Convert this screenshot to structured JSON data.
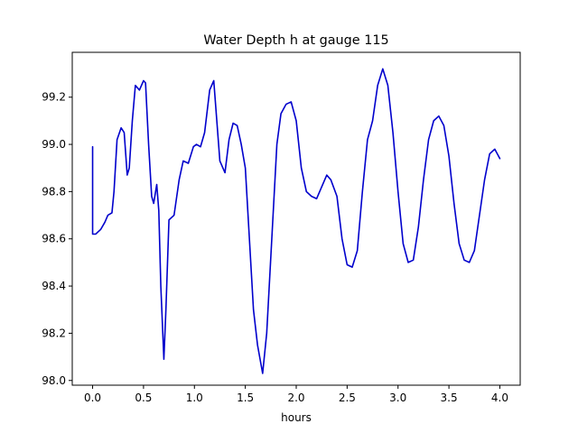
{
  "chart_data": {
    "type": "line",
    "title": "Water Depth h at gauge 115",
    "xlabel": "hours",
    "ylabel": "",
    "xlim": [
      -0.2,
      4.2
    ],
    "ylim": [
      97.98,
      99.39
    ],
    "xticks": [
      0.0,
      0.5,
      1.0,
      1.5,
      2.0,
      2.5,
      3.0,
      3.5,
      4.0
    ],
    "xtick_labels": [
      "0.0",
      "0.5",
      "1.0",
      "1.5",
      "2.0",
      "2.5",
      "3.0",
      "3.5",
      "4.0"
    ],
    "yticks": [
      98.0,
      98.2,
      98.4,
      98.6,
      98.8,
      99.0,
      99.2
    ],
    "ytick_labels": [
      "98.0",
      "98.2",
      "98.4",
      "98.6",
      "98.8",
      "99.0",
      "99.2"
    ],
    "grid": false,
    "series": [
      {
        "color": "#0000cc",
        "points": [
          [
            0.0,
            98.99
          ],
          [
            0.0,
            98.62
          ],
          [
            0.03,
            98.62
          ],
          [
            0.08,
            98.64
          ],
          [
            0.12,
            98.67
          ],
          [
            0.15,
            98.7
          ],
          [
            0.19,
            98.71
          ],
          [
            0.21,
            98.8
          ],
          [
            0.24,
            99.02
          ],
          [
            0.28,
            99.07
          ],
          [
            0.31,
            99.05
          ],
          [
            0.34,
            98.87
          ],
          [
            0.36,
            98.9
          ],
          [
            0.39,
            99.1
          ],
          [
            0.42,
            99.25
          ],
          [
            0.46,
            99.23
          ],
          [
            0.5,
            99.27
          ],
          [
            0.52,
            99.26
          ],
          [
            0.55,
            99.0
          ],
          [
            0.58,
            98.78
          ],
          [
            0.6,
            98.75
          ],
          [
            0.63,
            98.83
          ],
          [
            0.65,
            98.72
          ],
          [
            0.67,
            98.4
          ],
          [
            0.7,
            98.09
          ],
          [
            0.72,
            98.3
          ],
          [
            0.75,
            98.68
          ],
          [
            0.8,
            98.7
          ],
          [
            0.85,
            98.85
          ],
          [
            0.89,
            98.93
          ],
          [
            0.94,
            98.92
          ],
          [
            0.99,
            98.99
          ],
          [
            1.02,
            99.0
          ],
          [
            1.06,
            98.99
          ],
          [
            1.1,
            99.05
          ],
          [
            1.15,
            99.23
          ],
          [
            1.19,
            99.27
          ],
          [
            1.22,
            99.1
          ],
          [
            1.25,
            98.93
          ],
          [
            1.3,
            98.88
          ],
          [
            1.34,
            99.02
          ],
          [
            1.38,
            99.09
          ],
          [
            1.42,
            99.08
          ],
          [
            1.46,
            99.0
          ],
          [
            1.5,
            98.9
          ],
          [
            1.54,
            98.6
          ],
          [
            1.58,
            98.3
          ],
          [
            1.62,
            98.15
          ],
          [
            1.67,
            98.03
          ],
          [
            1.71,
            98.2
          ],
          [
            1.76,
            98.6
          ],
          [
            1.81,
            99.0
          ],
          [
            1.85,
            99.13
          ],
          [
            1.9,
            99.17
          ],
          [
            1.95,
            99.18
          ],
          [
            2.0,
            99.1
          ],
          [
            2.05,
            98.9
          ],
          [
            2.1,
            98.8
          ],
          [
            2.15,
            98.78
          ],
          [
            2.2,
            98.77
          ],
          [
            2.25,
            98.82
          ],
          [
            2.3,
            98.87
          ],
          [
            2.34,
            98.85
          ],
          [
            2.4,
            98.78
          ],
          [
            2.45,
            98.6
          ],
          [
            2.5,
            98.49
          ],
          [
            2.55,
            98.48
          ],
          [
            2.6,
            98.55
          ],
          [
            2.65,
            98.8
          ],
          [
            2.7,
            99.02
          ],
          [
            2.75,
            99.1
          ],
          [
            2.8,
            99.25
          ],
          [
            2.85,
            99.32
          ],
          [
            2.9,
            99.25
          ],
          [
            2.95,
            99.05
          ],
          [
            3.0,
            98.8
          ],
          [
            3.05,
            98.58
          ],
          [
            3.1,
            98.5
          ],
          [
            3.15,
            98.51
          ],
          [
            3.2,
            98.65
          ],
          [
            3.25,
            98.85
          ],
          [
            3.3,
            99.02
          ],
          [
            3.35,
            99.1
          ],
          [
            3.4,
            99.12
          ],
          [
            3.45,
            99.08
          ],
          [
            3.5,
            98.95
          ],
          [
            3.55,
            98.75
          ],
          [
            3.6,
            98.58
          ],
          [
            3.65,
            98.51
          ],
          [
            3.7,
            98.5
          ],
          [
            3.75,
            98.55
          ],
          [
            3.8,
            98.7
          ],
          [
            3.85,
            98.85
          ],
          [
            3.9,
            98.96
          ],
          [
            3.95,
            98.98
          ],
          [
            4.0,
            98.94
          ]
        ]
      }
    ]
  }
}
